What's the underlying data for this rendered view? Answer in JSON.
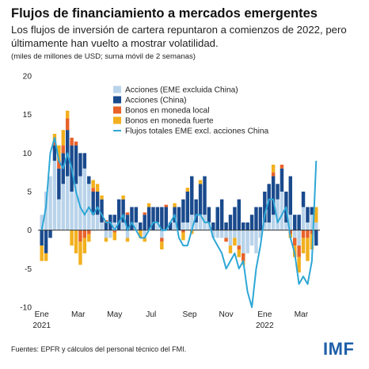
{
  "header": {
    "title": "Flujos de financiamiento a mercados emergentes",
    "subtitle": "Los flujos de inversión de cartera repuntaron a comienzos de 2022, pero últimamente han vuelto a mostrar volatilidad.",
    "units": "(miles de millones de USD; suma móvil de 2 semanas)"
  },
  "footer": {
    "source": "Fuentes: EPFR y cálculos del personal técnico del FMI.",
    "logo": "IMF"
  },
  "colors": {
    "acciones_eme": "#b9d3ea",
    "acciones_china": "#1a4a8d",
    "bonos_local": "#e8622a",
    "bonos_fuerte": "#f2b01e",
    "flujos_totales": "#2ea7d6",
    "axis": "#333333"
  },
  "chart_data": {
    "type": "bar",
    "stacked": true,
    "ylim": [
      -10,
      20
    ],
    "yticks": [
      -10,
      -5,
      0,
      5,
      10,
      15,
      20
    ],
    "xtick_labels": [
      {
        "label": "Ene",
        "label2": "2021",
        "week": 0
      },
      {
        "label": "Mar",
        "label2": "",
        "week": 8.5
      },
      {
        "label": "May",
        "label2": "",
        "week": 17
      },
      {
        "label": "Jul",
        "label2": "",
        "week": 25.5
      },
      {
        "label": "Sep",
        "label2": "",
        "week": 34.5
      },
      {
        "label": "Nov",
        "label2": "",
        "week": 43
      },
      {
        "label": "Ene",
        "label2": "2022",
        "week": 52
      },
      {
        "label": "Mar",
        "label2": "",
        "week": 60.5
      }
    ],
    "series": [
      {
        "name": "Acciones (EME excluida China)",
        "color_key": "acciones_eme",
        "values": [
          2,
          5,
          7,
          9,
          4,
          6,
          7,
          5,
          6,
          7,
          8,
          6,
          2,
          2,
          1,
          -1,
          -1,
          1,
          0,
          1,
          -1,
          0,
          1,
          0,
          -1,
          0,
          0,
          1,
          -1,
          0,
          0,
          1,
          0,
          1,
          1,
          2,
          1,
          2,
          2,
          1,
          -1,
          -1,
          -1,
          -1,
          -2,
          -1,
          -2,
          -3,
          -3,
          -2,
          -3,
          -1,
          1,
          1,
          2,
          4,
          5,
          1,
          2,
          -1,
          -2,
          3,
          1,
          2,
          1
        ]
      },
      {
        "name": "Acciones (China)",
        "color_key": "acciones_china",
        "values": [
          -2,
          -3,
          -1,
          2,
          4,
          4,
          6,
          6,
          5,
          3,
          2,
          1,
          3,
          3,
          3,
          1,
          2,
          1,
          4,
          3,
          2,
          3,
          2,
          1,
          2,
          3,
          3,
          2,
          3,
          3,
          1,
          2,
          3,
          3,
          4,
          5,
          3,
          4,
          5,
          2,
          1,
          3,
          4,
          1,
          2,
          3,
          4,
          1,
          1,
          2,
          3,
          3,
          4,
          5,
          5,
          2,
          3,
          4,
          5,
          2,
          2,
          2,
          2,
          1,
          -2
        ]
      },
      {
        "name": "Bonos en moneda local",
        "color_key": "bonos_local",
        "values": [
          0,
          0,
          0,
          0.5,
          1,
          1,
          1.5,
          1,
          0.5,
          -1.5,
          -1,
          -0.5,
          0.5,
          0,
          0,
          0.3,
          0,
          -0.3,
          0,
          0,
          0.3,
          0,
          0,
          0,
          0.3,
          0,
          0,
          0,
          -0.5,
          0.3,
          0,
          0,
          0,
          -0.3,
          0,
          0,
          0,
          0,
          0,
          0,
          0,
          0,
          0,
          -0.5,
          0,
          0,
          -0.5,
          -1,
          0,
          0,
          0,
          0,
          0,
          0,
          0.5,
          0,
          0.5,
          0,
          -0.5,
          -1,
          -1.5,
          -1,
          -1,
          -0.5,
          0
        ]
      },
      {
        "name": "Bonos en moneda fuerte",
        "color_key": "bonos_fuerte",
        "values": [
          -2,
          -1,
          0,
          1,
          2,
          2,
          1,
          -2,
          -3,
          -3,
          -2,
          -1,
          1,
          1,
          0.5,
          -0.5,
          0,
          -1,
          0,
          0.5,
          -0.5,
          0,
          0,
          -1,
          -0.5,
          0.5,
          0,
          0,
          -1,
          0,
          0,
          0.5,
          0,
          -1,
          0.5,
          -0.5,
          0,
          0.5,
          0,
          0,
          0,
          0,
          0,
          0,
          -1,
          -1,
          -1,
          -0.5,
          0,
          0,
          0,
          0,
          0,
          0,
          1,
          0,
          0,
          0,
          -0.5,
          -1.5,
          -2,
          -2,
          -3,
          -2,
          2
        ]
      },
      {
        "name": "Flujos totales EME excl. acciones China",
        "color_key": "flujos_totales",
        "type": "line",
        "values": [
          0,
          3,
          10,
          12,
          9,
          8,
          10,
          8,
          5,
          3,
          2,
          3,
          2,
          3,
          2,
          1,
          1,
          0,
          1,
          2,
          0,
          1,
          0,
          -1,
          -1,
          0,
          1,
          1,
          0,
          0,
          1,
          2,
          -1,
          -2,
          -2,
          0,
          2,
          2,
          1,
          1,
          -1,
          -2,
          -3,
          -5,
          -4,
          -3,
          -5,
          -4,
          -8,
          -10,
          -5,
          -2,
          2,
          4,
          4,
          1,
          2,
          3,
          -1,
          -3,
          -7,
          -6,
          -7,
          -4,
          9
        ]
      }
    ]
  }
}
